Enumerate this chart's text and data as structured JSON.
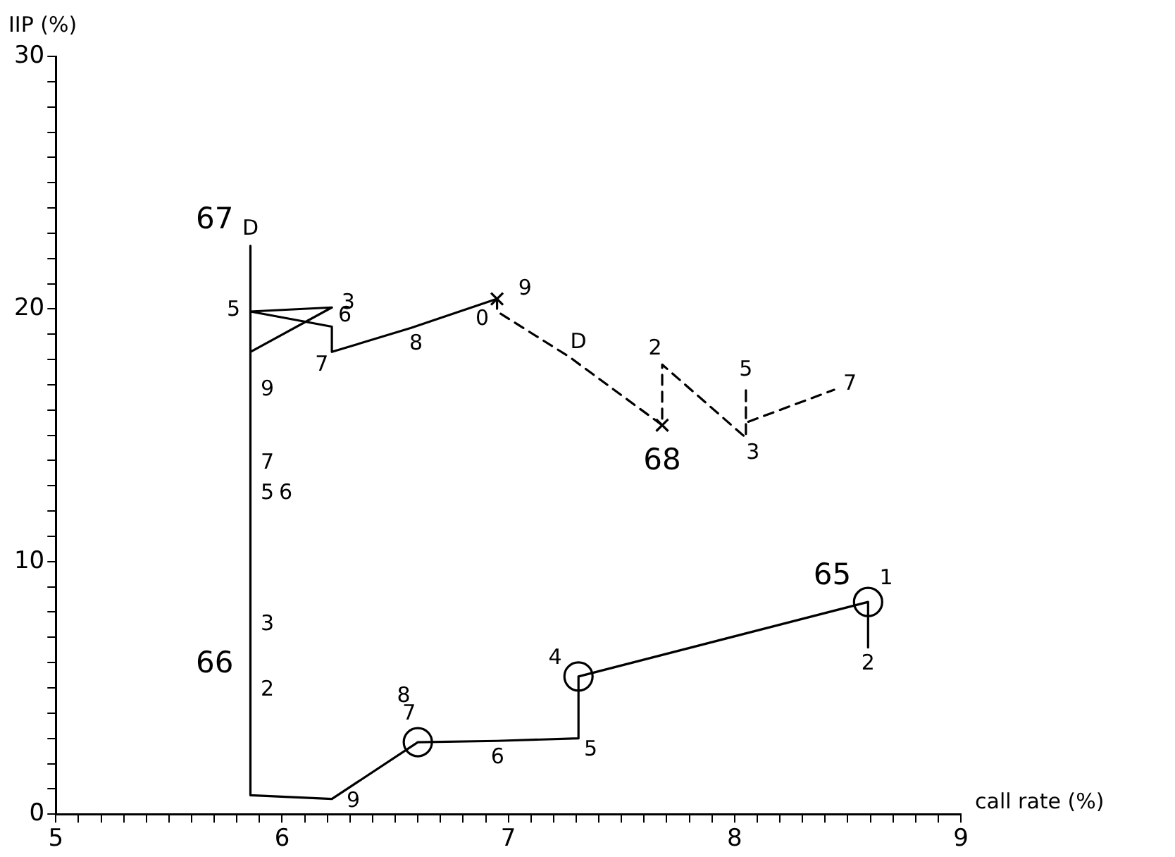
{
  "chart_data": {
    "type": "line",
    "xlabel": "call rate (%)",
    "ylabel": "IIP (%)",
    "xlim": [
      5,
      9
    ],
    "ylim": [
      0,
      30
    ],
    "xticks": [
      5,
      {
        "value": 5.1,
        "label": null
      },
      {
        "value": 5.2,
        "label": null
      },
      {
        "value": 5.3,
        "label": null
      },
      {
        "value": 5.4,
        "label": null
      },
      {
        "value": 5.5,
        "label": null
      },
      {
        "value": 5.6,
        "label": null
      },
      {
        "value": 5.7,
        "label": null
      },
      {
        "value": 5.8,
        "label": null
      },
      {
        "value": 5.9,
        "label": null
      },
      6,
      {
        "value": 6.1,
        "label": null
      },
      {
        "value": 6.2,
        "label": null
      },
      {
        "value": 6.3,
        "label": null
      },
      {
        "value": 6.4,
        "label": null
      },
      {
        "value": 6.5,
        "label": null
      },
      {
        "value": 6.6,
        "label": null
      },
      {
        "value": 6.7,
        "label": null
      },
      {
        "value": 6.8,
        "label": null
      },
      {
        "value": 6.9,
        "label": null
      },
      7,
      {
        "value": 7.1,
        "label": null
      },
      {
        "value": 7.2,
        "label": null
      },
      {
        "value": 7.3,
        "label": null
      },
      {
        "value": 7.4,
        "label": null
      },
      {
        "value": 7.5,
        "label": null
      },
      {
        "value": 7.6,
        "label": null
      },
      {
        "value": 7.7,
        "label": null
      },
      {
        "value": 7.8,
        "label": null
      },
      {
        "value": 7.9,
        "label": null
      },
      8,
      {
        "value": 8.1,
        "label": null
      },
      {
        "value": 8.2,
        "label": null
      },
      {
        "value": 8.3,
        "label": null
      },
      {
        "value": 8.4,
        "label": null
      },
      {
        "value": 8.5,
        "label": null
      },
      {
        "value": 8.6,
        "label": null
      },
      {
        "value": 8.7,
        "label": null
      },
      {
        "value": 8.8,
        "label": null
      },
      {
        "value": 8.9,
        "label": null
      },
      9
    ],
    "yticks": [
      0,
      {
        "value": 1,
        "label": null
      },
      {
        "value": 2,
        "label": null
      },
      {
        "value": 3,
        "label": null
      },
      {
        "value": 4,
        "label": null
      },
      {
        "value": 5,
        "label": null
      },
      {
        "value": 6,
        "label": null
      },
      {
        "value": 7,
        "label": null
      },
      {
        "value": 8,
        "label": null
      },
      {
        "value": 9,
        "label": null
      },
      10,
      {
        "value": 11,
        "label": null
      },
      {
        "value": 12,
        "label": null
      },
      {
        "value": 13,
        "label": null
      },
      {
        "value": 14,
        "label": null
      },
      {
        "value": 15,
        "label": null
      },
      {
        "value": 16,
        "label": null
      },
      {
        "value": 17,
        "label": null
      },
      {
        "value": 18,
        "label": null
      },
      {
        "value": 19,
        "label": null
      },
      20,
      {
        "value": 21,
        "label": null
      },
      {
        "value": 22,
        "label": null
      },
      {
        "value": 23,
        "label": null
      },
      {
        "value": 24,
        "label": null
      },
      {
        "value": 25,
        "label": null
      },
      {
        "value": 26,
        "label": null
      },
      {
        "value": 27,
        "label": null
      },
      {
        "value": 28,
        "label": null
      },
      {
        "value": 29,
        "label": null
      },
      30
    ],
    "grid": false,
    "legend": false,
    "series": [
      {
        "color": "#000000",
        "marker": "none",
        "line_style": "solid",
        "x": [
          8.59,
          8.59,
          7.31,
          7.31,
          6.95,
          6.6,
          6.22,
          5.86,
          5.86,
          5.86,
          5.86,
          5.86,
          5.86,
          5.86,
          5.86,
          6.22,
          5.86,
          6.22,
          6.22,
          6.57,
          6.95
        ],
        "values": [
          6.6,
          8.4,
          5.45,
          3.0,
          2.9,
          2.85,
          0.6,
          0.75,
          4.9,
          7.5,
          12.7,
          13.9,
          16.8,
          22.5,
          18.3,
          20.06,
          19.9,
          19.3,
          18.3,
          19.25,
          20.4
        ]
      },
      {
        "color": "#000000",
        "marker": "none",
        "line_style": "dashed",
        "x": [
          6.95,
          6.95,
          7.27,
          7.68,
          7.68,
          8.05,
          8.05,
          8.05,
          8.05,
          8.44
        ],
        "values": [
          20.4,
          19.9,
          18.1,
          15.4,
          17.8,
          14.9,
          15.5,
          16.9,
          15.5,
          16.8
        ]
      },
      {
        "type": "scatter",
        "color": "#000000",
        "marker": "circle",
        "x": [
          8.59,
          7.31,
          6.6
        ],
        "values": [
          8.4,
          5.45,
          2.85
        ]
      },
      {
        "type": "scatter",
        "color": "#000000",
        "marker": "cross",
        "x": [
          6.95,
          7.68
        ],
        "values": [
          20.4,
          15.4
        ]
      }
    ],
    "annotations": [
      {
        "text": "65",
        "x": 8.59,
        "y": 8.4
      },
      {
        "text": "1",
        "x": 8.59,
        "y": 8.4
      },
      {
        "text": "2",
        "x": 8.59,
        "y": 6.6
      },
      {
        "text": "4",
        "x": 7.31,
        "y": 5.45
      },
      {
        "text": "5",
        "x": 7.31,
        "y": 3.0
      },
      {
        "text": "6",
        "x": 6.95,
        "y": 2.9
      },
      {
        "text": "7",
        "x": 6.6,
        "y": 2.85
      },
      {
        "text": "8",
        "x": 6.6,
        "y": 2.85
      },
      {
        "text": "9",
        "x": 6.22,
        "y": 0.6
      },
      {
        "text": "66",
        "x": 5.86,
        "y": 4.9
      },
      {
        "text": "2",
        "x": 5.86,
        "y": 4.9
      },
      {
        "text": "3",
        "x": 5.86,
        "y": 7.5
      },
      {
        "text": "5",
        "x": 5.86,
        "y": 12.7
      },
      {
        "text": "6",
        "x": 5.86,
        "y": 12.7
      },
      {
        "text": "7",
        "x": 5.86,
        "y": 13.9
      },
      {
        "text": "9",
        "x": 5.86,
        "y": 16.8
      },
      {
        "text": "D",
        "x": 5.86,
        "y": 22.5
      },
      {
        "text": "67",
        "x": 5.86,
        "y": 22.5
      },
      {
        "text": "5",
        "x": 5.86,
        "y": 19.9
      },
      {
        "text": "3",
        "x": 6.22,
        "y": 20.06
      },
      {
        "text": "6",
        "x": 6.22,
        "y": 19.3
      },
      {
        "text": "7",
        "x": 6.22,
        "y": 18.3
      },
      {
        "text": "8",
        "x": 6.57,
        "y": 19.25
      },
      {
        "text": "9",
        "x": 6.95,
        "y": 20.4
      },
      {
        "text": "0",
        "x": 6.95,
        "y": 19.9
      },
      {
        "text": "D",
        "x": 7.27,
        "y": 18.1
      },
      {
        "text": "68",
        "x": 7.68,
        "y": 15.4
      },
      {
        "text": "2",
        "x": 7.68,
        "y": 17.8
      },
      {
        "text": "3",
        "x": 8.05,
        "y": 14.9
      },
      {
        "text": "5",
        "x": 8.05,
        "y": 16.9
      },
      {
        "text": "7",
        "x": 8.44,
        "y": 16.8
      }
    ]
  }
}
